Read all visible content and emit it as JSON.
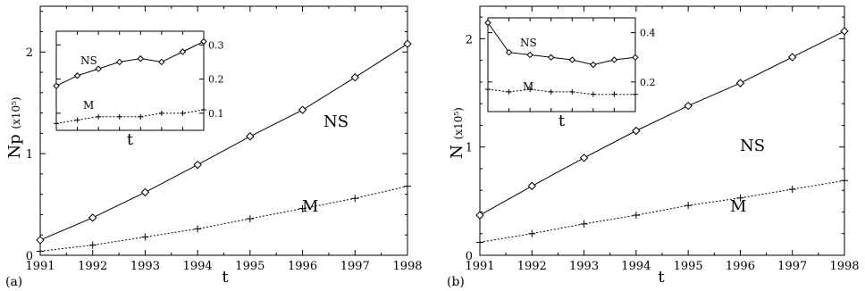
{
  "chart_data": [
    {
      "type": "line",
      "panel_label": "(a)",
      "xlabel": "t",
      "ylabel_main": "Np",
      "ylabel_unit": "(x10⁵)",
      "xlim": [
        1991,
        1998
      ],
      "ylim": [
        0,
        2.45
      ],
      "xticks": [
        1991,
        1992,
        1993,
        1994,
        1995,
        1996,
        1997,
        1998
      ],
      "yticks": [
        0,
        1,
        2
      ],
      "series": [
        {
          "name": "NS",
          "line": "solid",
          "marker": "diamond",
          "x": [
            1991,
            1992,
            1993,
            1994,
            1995,
            1996,
            1997,
            1998
          ],
          "y": [
            0.15,
            0.37,
            0.62,
            0.89,
            1.17,
            1.43,
            1.75,
            2.08
          ]
        },
        {
          "name": "M",
          "line": "dotted",
          "marker": "plus",
          "x": [
            1991,
            1992,
            1993,
            1994,
            1995,
            1996,
            1997,
            1998
          ],
          "y": [
            0.04,
            0.1,
            0.18,
            0.26,
            0.36,
            0.46,
            0.56,
            0.68
          ]
        }
      ],
      "inset": {
        "xlabel": "t",
        "yticks": [
          0.1,
          0.2,
          0.3
        ],
        "ylim": [
          0.05,
          0.34
        ],
        "xlim": [
          1991,
          1998
        ],
        "series": [
          {
            "name": "NS",
            "line": "solid",
            "marker": "diamond",
            "x": [
              1991,
              1992,
              1993,
              1994,
              1995,
              1996,
              1997,
              1998
            ],
            "y": [
              0.18,
              0.21,
              0.23,
              0.25,
              0.26,
              0.25,
              0.28,
              0.31
            ]
          },
          {
            "name": "M",
            "line": "dotted",
            "marker": "plus",
            "x": [
              1991,
              1992,
              1993,
              1994,
              1995,
              1996,
              1997,
              1998
            ],
            "y": [
              0.07,
              0.08,
              0.09,
              0.09,
              0.09,
              0.1,
              0.1,
              0.11
            ]
          }
        ]
      }
    },
    {
      "type": "line",
      "panel_label": "(b)",
      "xlabel": "t",
      "ylabel_main": "N",
      "ylabel_unit": "(x10⁵)",
      "xlim": [
        1991,
        1998
      ],
      "ylim": [
        0,
        2.3
      ],
      "xticks": [
        1991,
        1992,
        1993,
        1994,
        1995,
        1996,
        1997,
        1998
      ],
      "yticks": [
        0,
        1,
        2
      ],
      "series": [
        {
          "name": "NS",
          "line": "solid",
          "marker": "diamond",
          "x": [
            1991,
            1992,
            1993,
            1994,
            1995,
            1996,
            1997,
            1998
          ],
          "y": [
            0.37,
            0.64,
            0.9,
            1.15,
            1.38,
            1.59,
            1.83,
            2.07
          ]
        },
        {
          "name": "M",
          "line": "dotted",
          "marker": "plus",
          "x": [
            1991,
            1992,
            1993,
            1994,
            1995,
            1996,
            1997,
            1998
          ],
          "y": [
            0.12,
            0.2,
            0.29,
            0.37,
            0.46,
            0.53,
            0.61,
            0.69
          ]
        }
      ],
      "inset": {
        "xlabel": "t",
        "yticks": [
          0.2,
          0.4
        ],
        "ylim": [
          0.08,
          0.46
        ],
        "xlim": [
          1991,
          1998
        ],
        "series": [
          {
            "name": "NS",
            "line": "solid",
            "marker": "diamond",
            "x": [
              1991,
              1992,
              1993,
              1994,
              1995,
              1996,
              1997,
              1998
            ],
            "y": [
              0.44,
              0.32,
              0.31,
              0.3,
              0.29,
              0.27,
              0.29,
              0.3
            ]
          },
          {
            "name": "M",
            "line": "dotted",
            "marker": "plus",
            "x": [
              1991,
              1992,
              1993,
              1994,
              1995,
              1996,
              1997,
              1998
            ],
            "y": [
              0.17,
              0.16,
              0.17,
              0.16,
              0.16,
              0.15,
              0.15,
              0.15
            ]
          }
        ]
      }
    }
  ]
}
